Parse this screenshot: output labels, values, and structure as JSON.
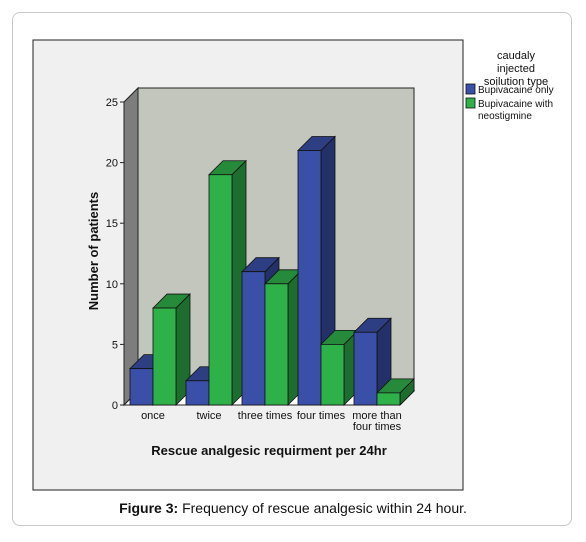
{
  "caption": {
    "label": "Figure 3:",
    "text": " Frequency of rescue analgesic within 24 hour."
  },
  "chart_data": {
    "type": "bar",
    "categories": [
      "once",
      "twice",
      "three times",
      "four times",
      "more than four times"
    ],
    "category_lines": [
      [
        "once"
      ],
      [
        "twice"
      ],
      [
        "three times"
      ],
      [
        "four times"
      ],
      [
        "more than",
        "four times"
      ]
    ],
    "series": [
      {
        "name": "Bupivacaine only",
        "values": [
          3,
          2,
          11,
          21,
          6
        ],
        "color": "#3a4fa8"
      },
      {
        "name": "Bupivacaine with neostigmine",
        "values": [
          8,
          19,
          10,
          5,
          1
        ],
        "color": "#2fb14a"
      }
    ],
    "series_label_lines": [
      [
        "Bupivacaine only"
      ],
      [
        "Bupivacaine with",
        "neostigmine"
      ]
    ],
    "legend_title_lines": [
      "caudaly",
      "injected",
      "soilution type"
    ],
    "legend_position": "right",
    "xlabel": "Rescue analgesic requirment per 24hr",
    "ylabel": "Number of patients",
    "yticks": [
      0,
      5,
      10,
      15,
      20,
      25
    ],
    "ylim": [
      0,
      25
    ],
    "style": "3d",
    "wall_color": "#c2c6bc"
  }
}
